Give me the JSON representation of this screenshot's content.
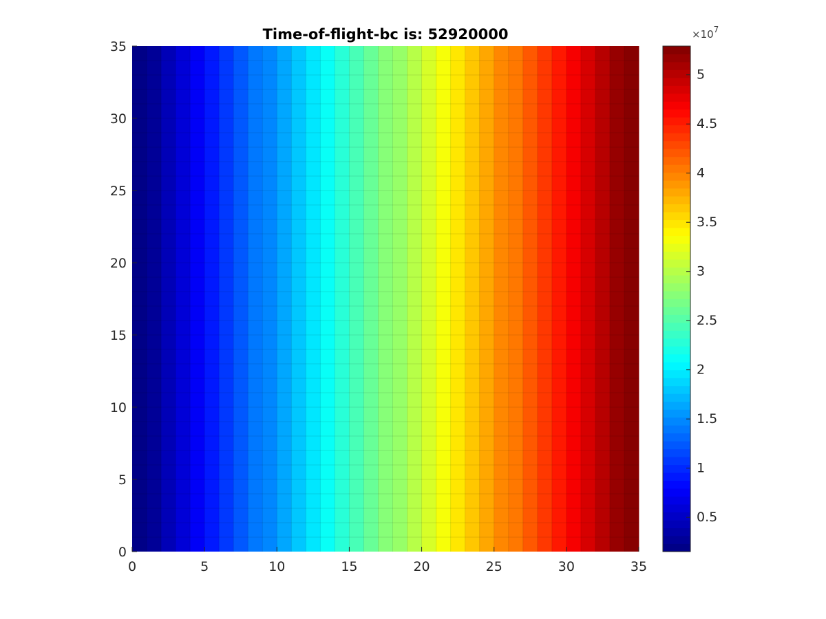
{
  "chart_data": {
    "type": "heatmap",
    "title": "Time-of-flight-bc is: 52920000",
    "xlabel": "",
    "ylabel": "",
    "xlim": [
      0,
      35
    ],
    "ylim": [
      0,
      35
    ],
    "x_ticks": [
      "0",
      "5",
      "10",
      "15",
      "20",
      "25",
      "30",
      "35"
    ],
    "y_ticks": [
      "0",
      "5",
      "10",
      "15",
      "20",
      "25",
      "30",
      "35"
    ],
    "grid": {
      "columns": 35,
      "rows": 35
    },
    "column_values": [
      1512000,
      3024000,
      4536000,
      6048000,
      7560000,
      9072000,
      10584000,
      12096000,
      13608000,
      15120000,
      16632000,
      18144000,
      19656000,
      21168000,
      22680000,
      24192000,
      25704000,
      27216000,
      28728000,
      30240000,
      31752000,
      33264000,
      34776000,
      36288000,
      37800000,
      39312000,
      40824000,
      42336000,
      43848000,
      45360000,
      46872000,
      48384000,
      49896000,
      51408000,
      52920000
    ],
    "value_note": "each column constant across all rows",
    "colormap": "jet",
    "colorbar": {
      "range": [
        1512000,
        52920000
      ],
      "ticks": [
        5000000,
        10000000,
        15000000,
        20000000,
        25000000,
        30000000,
        35000000,
        40000000,
        45000000,
        50000000
      ],
      "tick_labels": [
        "0.5",
        "1",
        "1.5",
        "2",
        "2.5",
        "3",
        "3.5",
        "4",
        "4.5",
        "5"
      ],
      "exponent_base": "×10",
      "exponent_power": "7",
      "levels": 64
    }
  }
}
